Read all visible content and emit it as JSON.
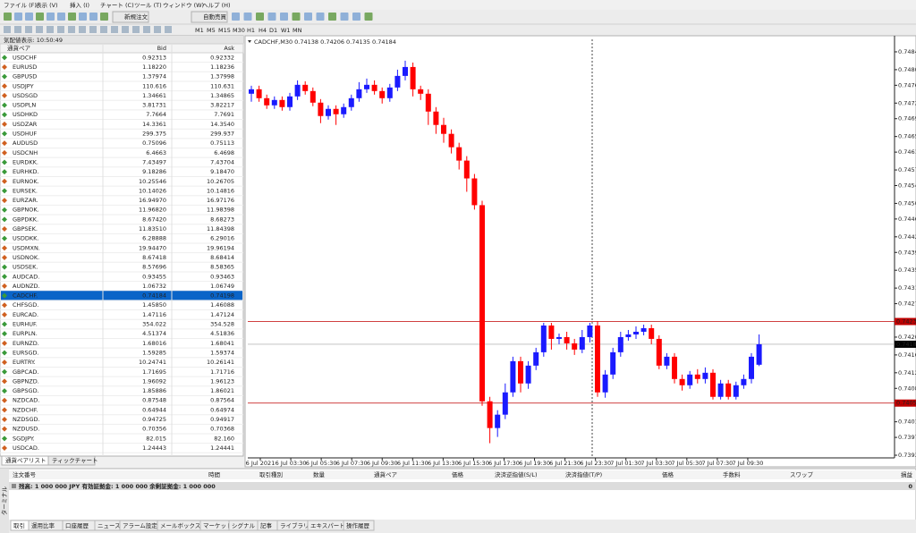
{
  "menu": [
    "ファイル (F)",
    "表示 (V)",
    "挿入 (I)",
    "チャート (C)",
    "ツール (T)",
    "ウィンドウ (W)",
    "ヘルプ (H)"
  ],
  "toolbar": {
    "new_order": "新規注文",
    "auto_trade": "自動売買",
    "timeframes": [
      "M1",
      "M5",
      "M15",
      "M30",
      "H1",
      "H4",
      "D1",
      "W1",
      "MN"
    ]
  },
  "market_watch": {
    "title": "気配値表示: 10:50:49",
    "columns": [
      "通貨ペア",
      "Bid",
      "Ask"
    ],
    "selected": 25,
    "rows": [
      [
        "USDCHF",
        "0.92313",
        "0.92332",
        "#1530c8"
      ],
      [
        "EURUSD",
        "1.18220",
        "1.18236",
        "#e01010"
      ],
      [
        "GBPUSD",
        "1.37974",
        "1.37998",
        "#1530c8"
      ],
      [
        "USDJPY",
        "110.616",
        "110.631",
        "#e01010"
      ],
      [
        "USDSGD",
        "1.34661",
        "1.34865",
        "#e01010"
      ],
      [
        "USDPLN",
        "3.81731",
        "3.82217",
        "#1530c8"
      ],
      [
        "USDHKD",
        "7.7664",
        "7.7691",
        "#1530c8"
      ],
      [
        "USDZAR",
        "14.3361",
        "14.3540",
        "#e01010"
      ],
      [
        "USDHUF",
        "299.375",
        "299.937",
        "#1530c8"
      ],
      [
        "AUDUSD",
        "0.75096",
        "0.75113",
        "#e01010"
      ],
      [
        "USDCNH",
        "6.4663",
        "6.4698",
        "#e01010"
      ],
      [
        "EURDKK.",
        "7.43497",
        "7.43704",
        "#1530c8"
      ],
      [
        "EURHKD.",
        "9.18286",
        "9.18470",
        "#1530c8"
      ],
      [
        "EURNOK.",
        "10.25546",
        "10.26705",
        "#e01010"
      ],
      [
        "EURSEK.",
        "10.14026",
        "10.14816",
        "#1530c8"
      ],
      [
        "EURZAR.",
        "16.94970",
        "16.97176",
        "#e01010"
      ],
      [
        "GBPNOK.",
        "11.96820",
        "11.98398",
        "#1530c8"
      ],
      [
        "GBPDKK.",
        "8.67420",
        "8.68273",
        "#1530c8"
      ],
      [
        "GBPSEK.",
        "11.83510",
        "11.84398",
        "#e01010"
      ],
      [
        "USDDKK.",
        "6.28888",
        "6.29016",
        "#1530c8"
      ],
      [
        "USDMXN.",
        "19.94470",
        "19.96194",
        "#e01010"
      ],
      [
        "USDNOK.",
        "8.67418",
        "8.68414",
        "#e01010"
      ],
      [
        "USDSEK.",
        "8.57696",
        "8.58365",
        "#1530c8"
      ],
      [
        "AUDCAD.",
        "0.93455",
        "0.93463",
        "#1530c8"
      ],
      [
        "AUDNZD.",
        "1.06732",
        "1.06749",
        "#e01010"
      ],
      [
        "CADCHF.",
        "0.74184",
        "0.74198",
        "#ffffff"
      ],
      [
        "CHFSGD.",
        "1.45850",
        "1.46088",
        "#e01010"
      ],
      [
        "EURCAD.",
        "1.47116",
        "1.47124",
        "#e01010"
      ],
      [
        "EURHUF.",
        "354.022",
        "354.528",
        "#1530c8"
      ],
      [
        "EURPLN.",
        "4.51374",
        "4.51836",
        "#1530c8"
      ],
      [
        "EURNZD.",
        "1.68016",
        "1.68041",
        "#e01010"
      ],
      [
        "EURSGD.",
        "1.59285",
        "1.59374",
        "#1530c8"
      ],
      [
        "EURTRY.",
        "10.24741",
        "10.26141",
        "#e01010"
      ],
      [
        "GBPCAD.",
        "1.71695",
        "1.71716",
        "#1530c8"
      ],
      [
        "GBPNZD.",
        "1.96092",
        "1.96123",
        "#e01010"
      ],
      [
        "GBPSGD.",
        "1.85886",
        "1.86021",
        "#1530c8"
      ],
      [
        "NZDCAD.",
        "0.87548",
        "0.87564",
        "#e01010"
      ],
      [
        "NZDCHF.",
        "0.64944",
        "0.64974",
        "#e01010"
      ],
      [
        "NZDSGD.",
        "0.94725",
        "0.94917",
        "#e01010"
      ],
      [
        "NZDUSD.",
        "0.70356",
        "0.70368",
        "#e01010"
      ],
      [
        "SGDJPY.",
        "82.015",
        "82.160",
        "#1530c8"
      ],
      [
        "USDCAD.",
        "1.24443",
        "1.24441",
        "#e01010"
      ]
    ],
    "tabs": [
      "通貨ペアリスト",
      "ティックチャート"
    ]
  },
  "chart": {
    "type": "candlestick",
    "title": "CADCHF,M30  0.74138 0.74206 0.74135 0.74184",
    "bull_color": "#1a1aff",
    "bear_color": "#ff0000",
    "ylim": [
      0.73915,
      0.7486
    ],
    "yticks": [
      {
        "value": 0.7484,
        "label": "0.74840"
      },
      {
        "value": 0.748,
        "label": "0.74800"
      },
      {
        "value": 0.74765,
        "label": "0.74765"
      },
      {
        "value": 0.74725,
        "label": "0.74725"
      },
      {
        "value": 0.7469,
        "label": "0.74690"
      },
      {
        "value": 0.7465,
        "label": "0.74650"
      },
      {
        "value": 0.74615,
        "label": "0.74615"
      },
      {
        "value": 0.74575,
        "label": "0.74575"
      },
      {
        "value": 0.7454,
        "label": "0.74540"
      },
      {
        "value": 0.745,
        "label": "0.74500"
      },
      {
        "value": 0.74465,
        "label": "0.74465"
      },
      {
        "value": 0.74425,
        "label": "0.74425"
      },
      {
        "value": 0.7439,
        "label": "0.74390"
      },
      {
        "value": 0.7435,
        "label": "0.74350"
      },
      {
        "value": 0.7431,
        "label": "0.74310"
      },
      {
        "value": 0.74275,
        "label": "0.74275"
      },
      {
        "value": 0.742,
        "label": "0.74200"
      },
      {
        "value": 0.7416,
        "label": "0.74160"
      },
      {
        "value": 0.7412,
        "label": "0.74120"
      },
      {
        "value": 0.74085,
        "label": "0.74085"
      },
      {
        "value": 0.7401,
        "label": "0.74010"
      },
      {
        "value": 0.73975,
        "label": "0.73975"
      },
      {
        "value": 0.73935,
        "label": "0.73935"
      }
    ],
    "hlines": [
      {
        "value": 0.74235,
        "label": "0.74235",
        "color": "#c00000"
      },
      {
        "value": 0.74184,
        "label": "0.74184",
        "color": "#a0a0a0"
      },
      {
        "value": 0.74052,
        "label": "0.74052",
        "color": "#c00000"
      }
    ],
    "xlabels": [
      "6 Jul 2021",
      "6 Jul 03:30",
      "6 Jul 05:30",
      "6 Jul 07:30",
      "6 Jul 09:30",
      "6 Jul 11:30",
      "6 Jul 13:30",
      "6 Jul 15:30",
      "6 Jul 17:30",
      "6 Jul 19:30",
      "6 Jul 21:30",
      "6 Jul 23:30",
      "7 Jul 01:30",
      "7 Jul 03:30",
      "7 Jul 05:30",
      "7 Jul 07:30",
      "7 Jul 09:30"
    ],
    "candles": [
      [
        0.74746,
        0.74764,
        0.74728,
        0.74756
      ],
      [
        0.74756,
        0.74764,
        0.74728,
        0.74736
      ],
      [
        0.74736,
        0.74744,
        0.74712,
        0.7472
      ],
      [
        0.7472,
        0.7474,
        0.74712,
        0.74732
      ],
      [
        0.74732,
        0.7474,
        0.74708,
        0.74716
      ],
      [
        0.74716,
        0.74748,
        0.74708,
        0.7474
      ],
      [
        0.7474,
        0.74776,
        0.74732,
        0.74766
      ],
      [
        0.74766,
        0.74774,
        0.74744,
        0.74752
      ],
      [
        0.74752,
        0.7476,
        0.74718,
        0.74726
      ],
      [
        0.74726,
        0.74734,
        0.7468,
        0.74696
      ],
      [
        0.74696,
        0.7472,
        0.74688,
        0.74712
      ],
      [
        0.74712,
        0.7472,
        0.74676,
        0.747
      ],
      [
        0.747,
        0.74724,
        0.74692,
        0.74716
      ],
      [
        0.74716,
        0.74744,
        0.74708,
        0.74736
      ],
      [
        0.74736,
        0.74772,
        0.74728,
        0.74756
      ],
      [
        0.74756,
        0.7478,
        0.74748,
        0.74766
      ],
      [
        0.74766,
        0.74776,
        0.74744,
        0.74752
      ],
      [
        0.74752,
        0.7476,
        0.74724,
        0.74736
      ],
      [
        0.74736,
        0.74768,
        0.74728,
        0.7476
      ],
      [
        0.7476,
        0.748,
        0.74752,
        0.74786
      ],
      [
        0.74786,
        0.7482,
        0.74776,
        0.74806
      ],
      [
        0.74806,
        0.74816,
        0.7474,
        0.74756
      ],
      [
        0.74756,
        0.74764,
        0.74732,
        0.74746
      ],
      [
        0.74746,
        0.74756,
        0.74676,
        0.74706
      ],
      [
        0.74706,
        0.74716,
        0.74656,
        0.74676
      ],
      [
        0.74676,
        0.74692,
        0.74636,
        0.74656
      ],
      [
        0.74656,
        0.74666,
        0.74612,
        0.74626
      ],
      [
        0.74626,
        0.74636,
        0.74576,
        0.74596
      ],
      [
        0.74596,
        0.74606,
        0.74526,
        0.74556
      ],
      [
        0.74556,
        0.74566,
        0.74486,
        0.74496
      ],
      [
        0.74496,
        0.74506,
        0.74046,
        0.74056
      ],
      [
        0.74056,
        0.74066,
        0.73962,
        0.73996
      ],
      [
        0.73996,
        0.74036,
        0.73976,
        0.74026
      ],
      [
        0.74026,
        0.74096,
        0.74016,
        0.74076
      ],
      [
        0.74076,
        0.74156,
        0.74066,
        0.74146
      ],
      [
        0.74146,
        0.74156,
        0.74076,
        0.74096
      ],
      [
        0.74096,
        0.74146,
        0.74084,
        0.74136
      ],
      [
        0.74136,
        0.74176,
        0.74126,
        0.74166
      ],
      [
        0.74166,
        0.74232,
        0.74156,
        0.74226
      ],
      [
        0.74226,
        0.74232,
        0.74172,
        0.74196
      ],
      [
        0.74196,
        0.74208,
        0.74184,
        0.742
      ],
      [
        0.742,
        0.74212,
        0.74172,
        0.74186
      ],
      [
        0.74186,
        0.74196,
        0.7416,
        0.74172
      ],
      [
        0.74172,
        0.74216,
        0.74164,
        0.742
      ],
      [
        0.742,
        0.74232,
        0.74188,
        0.74226
      ],
      [
        0.74226,
        0.74236,
        0.74066,
        0.74076
      ],
      [
        0.74076,
        0.74126,
        0.74064,
        0.74116
      ],
      [
        0.74116,
        0.74176,
        0.74106,
        0.74166
      ],
      [
        0.74166,
        0.74212,
        0.74156,
        0.742
      ],
      [
        0.742,
        0.74216,
        0.74192,
        0.74206
      ],
      [
        0.74206,
        0.74224,
        0.74196,
        0.74212
      ],
      [
        0.74212,
        0.74228,
        0.74204,
        0.7422
      ],
      [
        0.7422,
        0.74228,
        0.74184,
        0.74196
      ],
      [
        0.74196,
        0.74204,
        0.74128,
        0.74136
      ],
      [
        0.74136,
        0.74164,
        0.74128,
        0.74156
      ],
      [
        0.74156,
        0.74164,
        0.74096,
        0.74106
      ],
      [
        0.74106,
        0.74116,
        0.7408,
        0.74092
      ],
      [
        0.74092,
        0.74124,
        0.74084,
        0.74116
      ],
      [
        0.74116,
        0.74128,
        0.74096,
        0.74106
      ],
      [
        0.74106,
        0.74132,
        0.74096,
        0.7412
      ],
      [
        0.7412,
        0.74128,
        0.7406,
        0.74066
      ],
      [
        0.74066,
        0.74104,
        0.7406,
        0.74096
      ],
      [
        0.74096,
        0.74104,
        0.7406,
        0.74066
      ],
      [
        0.74066,
        0.741,
        0.7406,
        0.74092
      ],
      [
        0.74092,
        0.74116,
        0.74084,
        0.74106
      ],
      [
        0.74106,
        0.74164,
        0.74096,
        0.74156
      ],
      [
        0.74138,
        0.74206,
        0.74135,
        0.74184
      ]
    ]
  },
  "terminal": {
    "side_label": "ターミナル",
    "columns": [
      "注文番号",
      "時間",
      "取引種別",
      "数量",
      "通貨ペア",
      "価格",
      "決済逆指値(S/L)",
      "決済指値(T/P)",
      "価格",
      "手数料",
      "スワップ",
      "損益"
    ],
    "balance": "残高: 1 000 000 JPY  有効証拠金: 1 000 000  余剰証拠金: 1 000 000",
    "profit": "0",
    "tabs": [
      "取引",
      "運用比率",
      "口座履歴",
      "ニュース",
      "アラーム設定",
      "メールボックス",
      "マーケット",
      "シグナル",
      "記事",
      "ライブラリ",
      "エキスパート",
      "操作履歴"
    ]
  }
}
